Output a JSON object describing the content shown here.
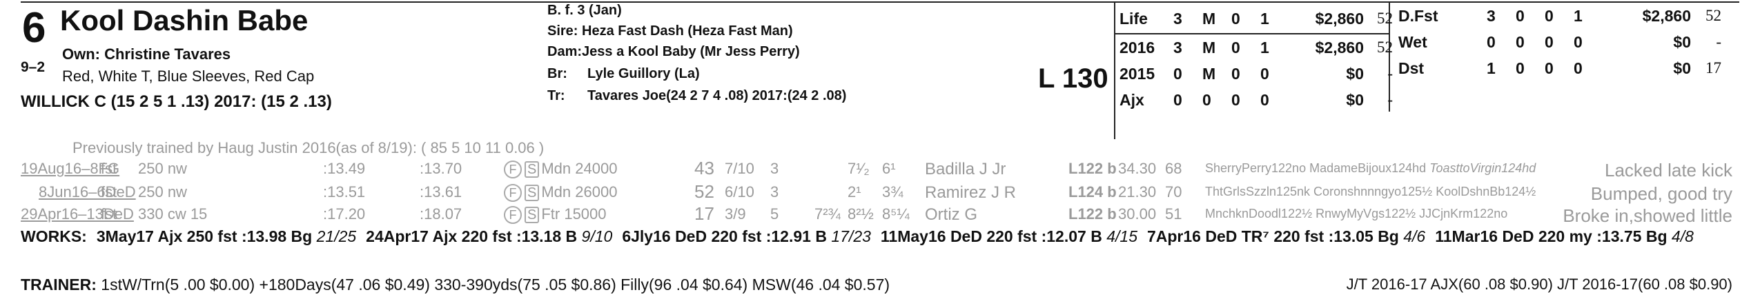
{
  "horse": {
    "number": "6",
    "odds": "9–2",
    "name": "Kool Dashin Babe",
    "owner": "Own: Christine Tavares",
    "silks": "Red, White T, Blue Sleeves, Red Cap",
    "jockey": "WILLICK C (15 2 5 1 .13) 2017: (15 2 .13)"
  },
  "pedigree": {
    "sex_age": "B. f. 3 (Jan)",
    "sire": "Sire: Heza Fast Dash (Heza Fast Man)",
    "dam_label": "Dam:",
    "dam": "Jess a Kool Baby (Mr Jess Perry)",
    "breeder_label": "Br:",
    "breeder": "Lyle Guillory (La)",
    "trainer_label": "Tr:",
    "trainer": "Tavares Joe(24 2 7 4 .08)  2017:(24 2 .08)"
  },
  "weight": "L 130",
  "stats_left": [
    {
      "label": "Life",
      "s": "3",
      "w": "M",
      "p": "0",
      "sh": "1",
      "earn": "$2,860",
      "spd": "52"
    },
    {
      "label": "2016",
      "s": "3",
      "w": "M",
      "p": "0",
      "sh": "1",
      "earn": "$2,860",
      "spd": "52"
    },
    {
      "label": "2015",
      "s": "0",
      "w": "M",
      "p": "0",
      "sh": "0",
      "earn": "$0",
      "spd": "-"
    },
    {
      "label": "Ajx",
      "s": "0",
      "w": "0",
      "p": "0",
      "sh": "0",
      "earn": "$0",
      "spd": "-"
    }
  ],
  "stats_right": [
    {
      "label": "D.Fst",
      "s": "3",
      "w": "0",
      "p": "0",
      "sh": "1",
      "earn": "$2,860",
      "spd": "52"
    },
    {
      "label": "Wet",
      "s": "0",
      "w": "0",
      "p": "0",
      "sh": "0",
      "earn": "$0",
      "spd": "-"
    },
    {
      "label": "Dst",
      "s": "1",
      "w": "0",
      "p": "0",
      "sh": "0",
      "earn": "$0",
      "spd": "17"
    }
  ],
  "prev_trainer": "Previously trained by Haug Justin 2016(as of 8/19): ( 85 5 10 11 0.06 )",
  "races": [
    {
      "date": "19Aug16–8FG",
      "surf": "fst",
      "dist": "250 nw",
      "f1": ":13.49",
      "f2": ":13.70",
      "type": "Mdn 24000",
      "fig": "43",
      "pp": "7/10",
      "st": "3",
      "c1": "",
      "c2": "7¹⁄₂",
      "fin": "6¹",
      "jockey": "Badilla J Jr",
      "wt": "L122 b",
      "odds": "34.30",
      "spd": "68",
      "comment": "SherryPerry122no MadameBijoux124hd ToasttoVirgin124hd",
      "comment_it": "ToasttoVirgin124hd",
      "result": "Lacked late kick"
    },
    {
      "date": "8Jun16–6DeD",
      "surf": "fst",
      "dist": "250 nw",
      "f1": ":13.51",
      "f2": ":13.61",
      "type": "Mdn 26000",
      "fig": "52",
      "pp": "6/10",
      "st": "3",
      "c1": "",
      "c2": "2¹",
      "fin": "3¾",
      "jockey": "Ramirez J R",
      "wt": "L124 b",
      "odds": "21.30",
      "spd": "70",
      "comment": "ThtGrlsSzzln125nk Coronshnnngyo125½ KoolDshnBb124½",
      "comment_it": "",
      "result": "Bumped, good try"
    },
    {
      "date": "29Apr16–13DeD",
      "surf": "fst",
      "dist": "330 cw 15",
      "f1": ":17.20",
      "f2": ":18.07",
      "type": "Ftr 15000",
      "fig": "17",
      "pp": "3/9",
      "st": "5",
      "c1": "7²¾",
      "c2": "8²½",
      "fin": "8⁵¼",
      "jockey": "Ortiz G",
      "wt": "L122 b",
      "odds": "30.00",
      "spd": "51",
      "comment": "MnchknDoodl122½ RnwyMyVgs122½ JJCjnKrm122no",
      "comment_it": "",
      "result": "Broke in,showed little"
    }
  ],
  "works": {
    "label": "WORKS:",
    "entries": [
      {
        "date": "3May17",
        "trk": "Ajx",
        "dist": "250 fst",
        "time": ":13.98",
        "grade": "Bg",
        "rank": "21/25"
      },
      {
        "date": "24Apr17",
        "trk": "Ajx",
        "dist": "220 fst",
        "time": ":13.18",
        "grade": "B",
        "rank": "9/10"
      },
      {
        "date": "6Jly16",
        "trk": "DeD",
        "dist": "220 fst",
        "time": ":12.91",
        "grade": "B",
        "rank": "17/23"
      },
      {
        "date": "11May16",
        "trk": "DeD",
        "dist": "220 fst",
        "time": ":12.07",
        "grade": "B",
        "rank": "4/15"
      },
      {
        "date": "7Apr16",
        "trk": "DeD TR⁷",
        "dist": "220 fst",
        "time": ":13.05",
        "grade": "Bg",
        "rank": "4/6"
      },
      {
        "date": "11Mar16",
        "trk": "DeD",
        "dist": "220 my",
        "time": ":13.75",
        "grade": "Bg",
        "rank": "4/8"
      }
    ]
  },
  "trainer_stats": {
    "label": "TRAINER:",
    "text": "1stW/Trn(5 .00 $0.00) +180Days(47 .06 $0.49) 330-390yds(75 .05 $0.86) Filly(96 .04 $0.64) MSW(46 .04 $0.57)",
    "jt": "J/T 2016-17 AJX(60 .08 $0.90)  J/T 2016-17(60 .08 $0.90)"
  }
}
